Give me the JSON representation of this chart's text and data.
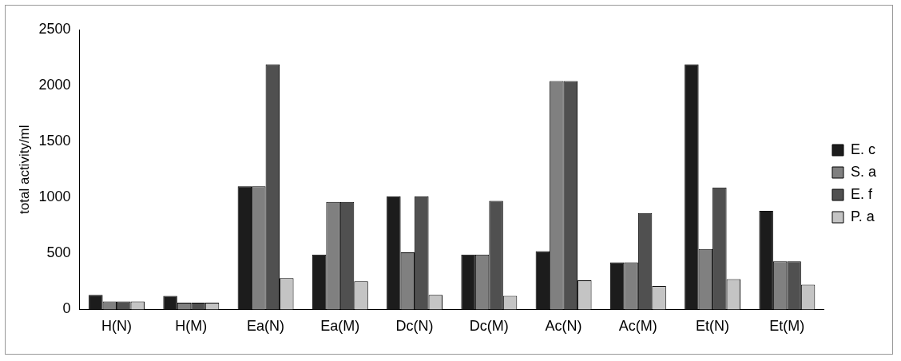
{
  "chart_data": {
    "type": "bar",
    "ylabel": "total activity/ml",
    "categories": [
      "H(N)",
      "H(M)",
      "Ea(N)",
      "Ea(M)",
      "Dc(N)",
      "Dc(M)",
      "Ac(N)",
      "Ac(M)",
      "Et(N)",
      "Et(M)"
    ],
    "series": [
      {
        "name": "E. c",
        "color": "#1c1c1c",
        "values": [
          130,
          120,
          1100,
          490,
          1010,
          490,
          520,
          420,
          2190,
          880
        ]
      },
      {
        "name": "S. a",
        "color": "#808080",
        "values": [
          70,
          60,
          1100,
          960,
          510,
          490,
          2040,
          420,
          540,
          430
        ]
      },
      {
        "name": "E. f",
        "color": "#505050",
        "values": [
          70,
          60,
          2190,
          960,
          1010,
          970,
          2040,
          860,
          1090,
          430
        ]
      },
      {
        "name": "P. a",
        "color": "#c4c4c4",
        "values": [
          70,
          60,
          280,
          250,
          130,
          120,
          260,
          210,
          270,
          220
        ]
      }
    ],
    "ylim": [
      0,
      2500
    ],
    "yticks": [
      0,
      500,
      1000,
      1500,
      2000,
      2500
    ],
    "grid": false,
    "legend": "right"
  }
}
